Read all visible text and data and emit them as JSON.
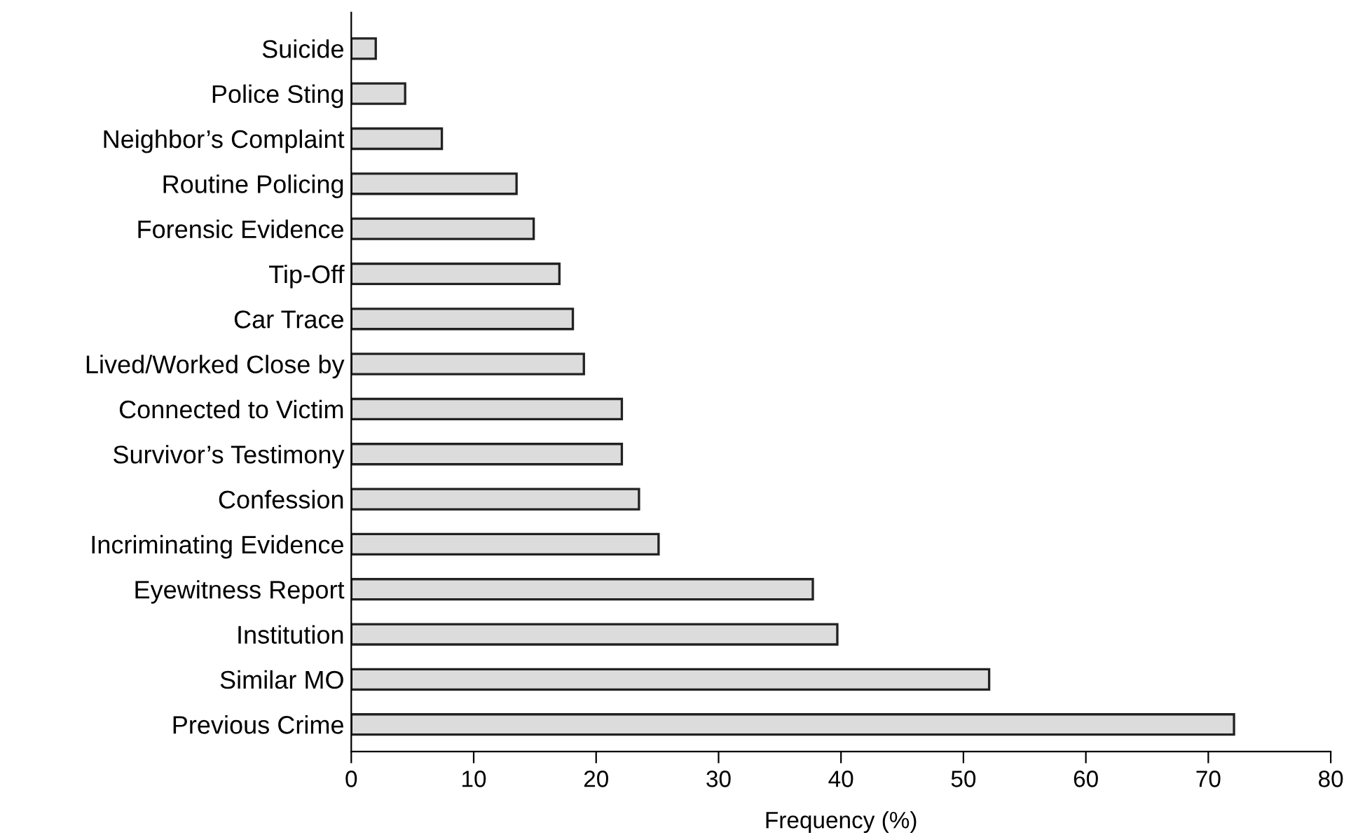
{
  "chart_data": {
    "type": "bar",
    "orientation": "horizontal",
    "xlabel": "Frequency (%)",
    "categories": [
      "Suicide",
      "Police Sting",
      "Neighbor’s Complaint",
      "Routine Policing",
      "Forensic Evidence",
      "Tip-Off",
      "Car Trace",
      "Lived/Worked Close by",
      "Connected to Victim",
      "Survivor’s Testimony",
      "Confession",
      "Incriminating Evidence",
      "Eyewitness Report",
      "Institution",
      "Similar MO",
      "Previous Crime"
    ],
    "values": [
      2.0,
      4.4,
      7.4,
      13.5,
      14.9,
      17.0,
      18.1,
      19.0,
      22.1,
      22.1,
      23.5,
      25.1,
      37.7,
      39.7,
      52.1,
      72.1
    ],
    "color": "#dcdcdc",
    "xlim": [
      0,
      80
    ],
    "xticks": [
      0,
      10,
      20,
      30,
      40,
      50,
      60,
      70,
      80
    ],
    "grid": false,
    "legend": false
  }
}
